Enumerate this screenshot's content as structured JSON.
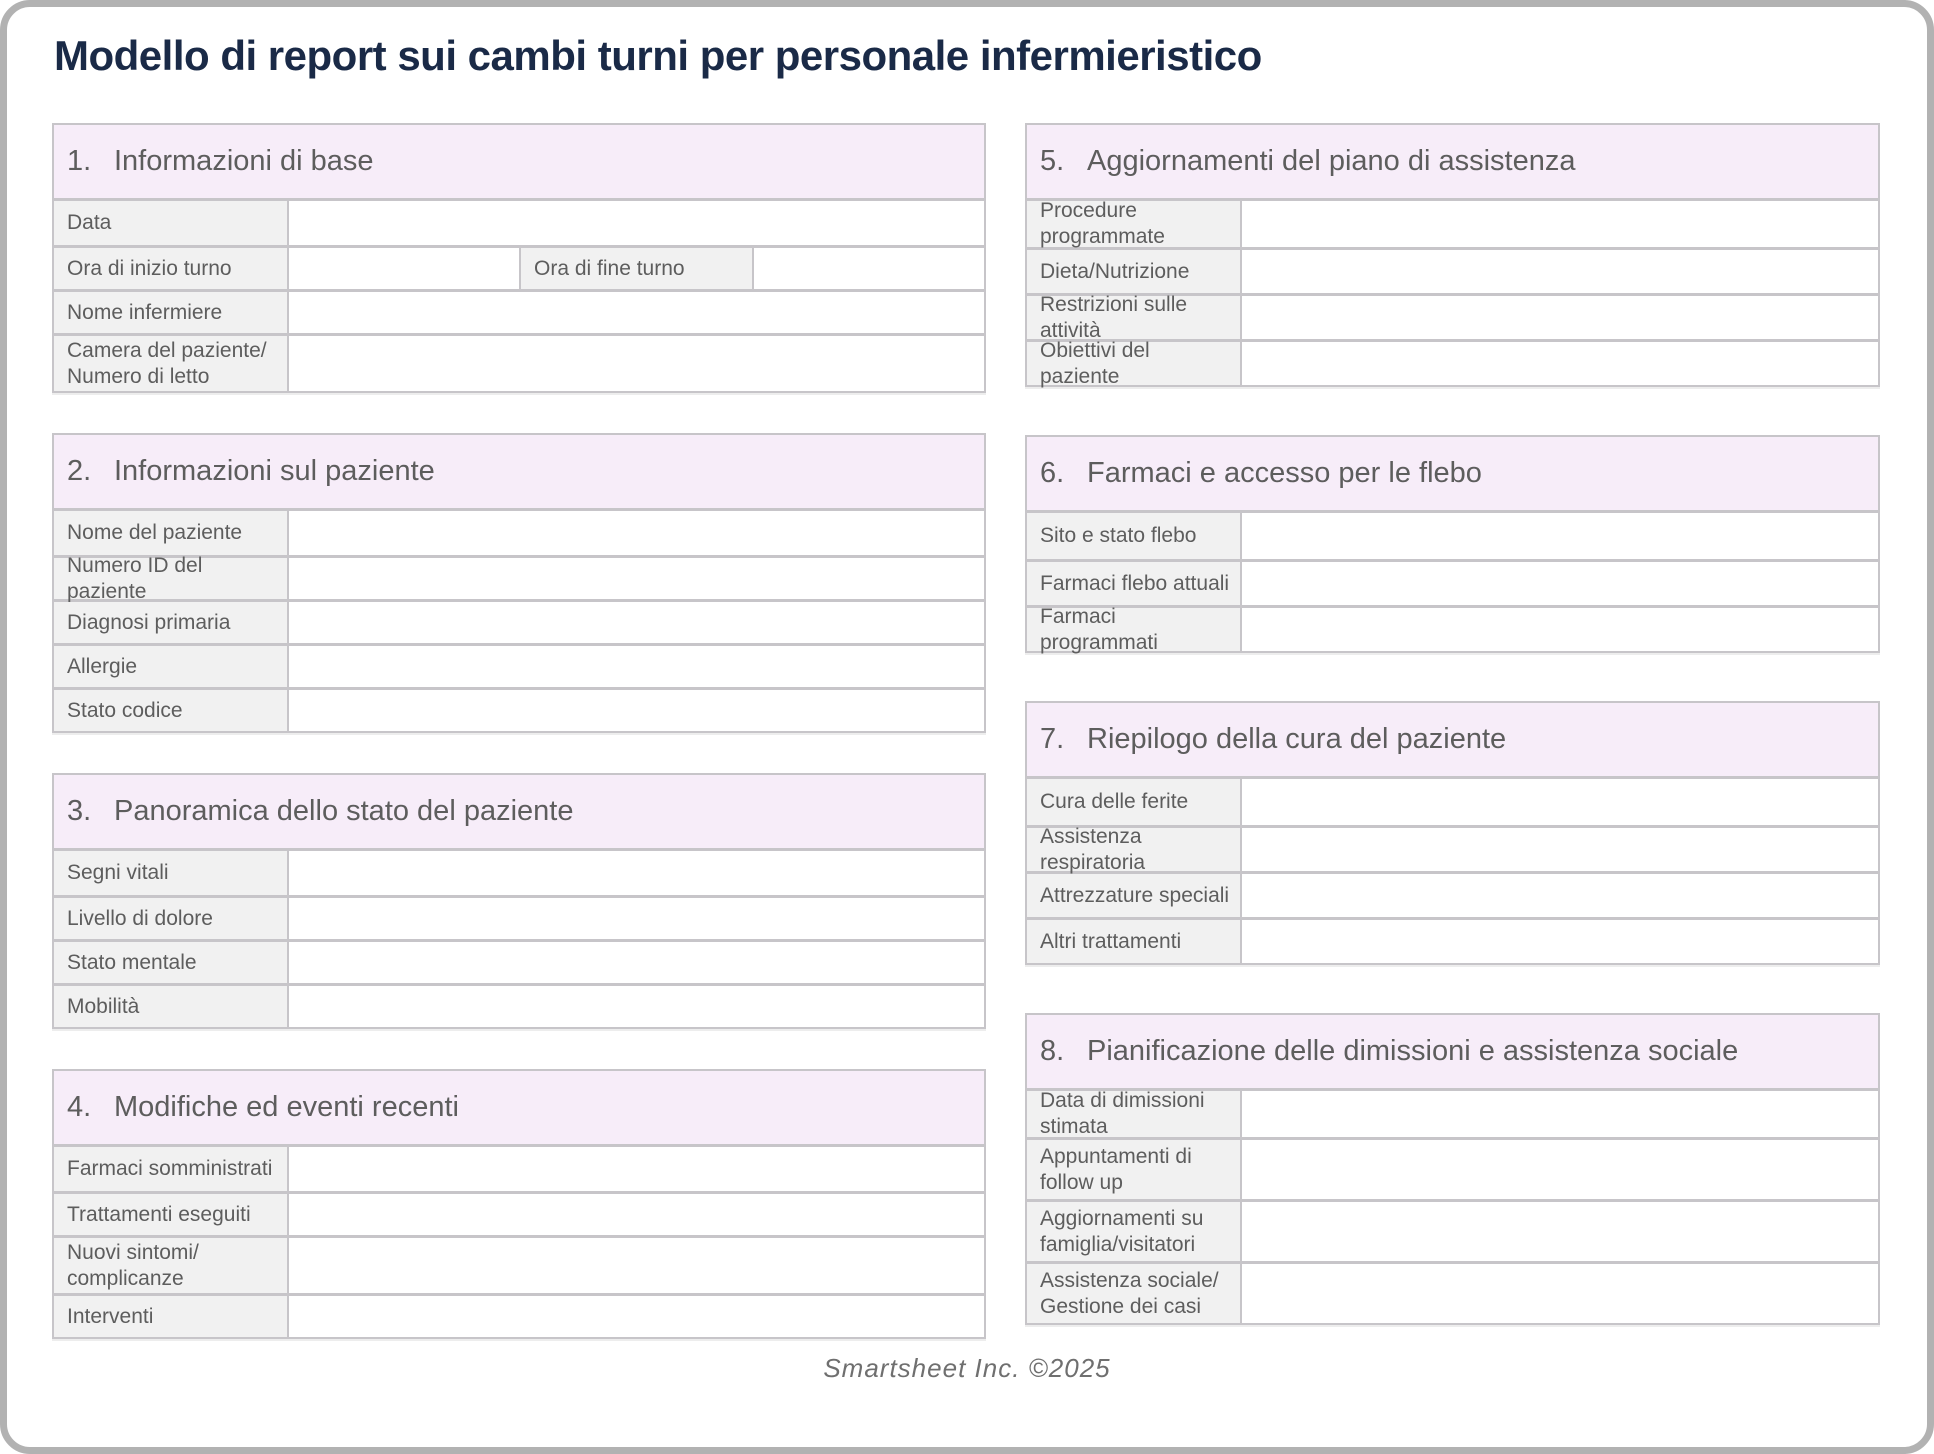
{
  "page": {
    "title": "Modello di report sui cambi turni per personale infermieristico",
    "footer": "Smartsheet Inc. ©2025"
  },
  "colors": {
    "title_text": "#1a2a47",
    "section_header_bg": "#f7edf9",
    "label_bg": "#f1f1f1",
    "border": "#c7c5c9",
    "text": "#5d5d5d",
    "footer_text": "#6f6f6f",
    "page_border": "#b2b2b2"
  },
  "sections": [
    {
      "number": "1.",
      "title": "Informazioni di base",
      "column": "left",
      "rows": [
        {
          "cells": [
            {
              "type": "label",
              "lines": [
                "Data"
              ]
            },
            {
              "type": "input"
            }
          ]
        },
        {
          "cells": [
            {
              "type": "label",
              "lines": [
                "Ora di inizio turno"
              ]
            },
            {
              "type": "input"
            },
            {
              "type": "label",
              "lines": [
                "Ora di fine turno"
              ]
            },
            {
              "type": "input"
            }
          ]
        },
        {
          "cells": [
            {
              "type": "label",
              "lines": [
                "Nome infermiere"
              ]
            },
            {
              "type": "input"
            }
          ]
        },
        {
          "tall": true,
          "cells": [
            {
              "type": "label",
              "lines": [
                "Camera del paziente/",
                "Numero di letto"
              ]
            },
            {
              "type": "input"
            }
          ]
        }
      ]
    },
    {
      "number": "2.",
      "title": "Informazioni sul paziente",
      "column": "left",
      "rows": [
        {
          "cells": [
            {
              "type": "label",
              "lines": [
                "Nome del paziente"
              ]
            },
            {
              "type": "input"
            }
          ]
        },
        {
          "cells": [
            {
              "type": "label",
              "lines": [
                "Numero ID del paziente"
              ]
            },
            {
              "type": "input"
            }
          ]
        },
        {
          "cells": [
            {
              "type": "label",
              "lines": [
                "Diagnosi primaria"
              ]
            },
            {
              "type": "input"
            }
          ]
        },
        {
          "cells": [
            {
              "type": "label",
              "lines": [
                "Allergie"
              ]
            },
            {
              "type": "input"
            }
          ]
        },
        {
          "cells": [
            {
              "type": "label",
              "lines": [
                "Stato codice"
              ]
            },
            {
              "type": "input"
            }
          ]
        }
      ]
    },
    {
      "number": "3.",
      "title": "Panoramica dello stato del paziente",
      "column": "left",
      "rows": [
        {
          "cells": [
            {
              "type": "label",
              "lines": [
                "Segni vitali"
              ]
            },
            {
              "type": "input"
            }
          ]
        },
        {
          "cells": [
            {
              "type": "label",
              "lines": [
                "Livello di dolore"
              ]
            },
            {
              "type": "input"
            }
          ]
        },
        {
          "cells": [
            {
              "type": "label",
              "lines": [
                "Stato mentale"
              ]
            },
            {
              "type": "input"
            }
          ]
        },
        {
          "cells": [
            {
              "type": "label",
              "lines": [
                "Mobilità"
              ]
            },
            {
              "type": "input"
            }
          ]
        }
      ]
    },
    {
      "number": "4.",
      "title": "Modifiche ed eventi recenti",
      "column": "left",
      "rows": [
        {
          "cells": [
            {
              "type": "label",
              "lines": [
                "Farmaci somministrati"
              ]
            },
            {
              "type": "input"
            }
          ]
        },
        {
          "cells": [
            {
              "type": "label",
              "lines": [
                "Trattamenti eseguiti"
              ]
            },
            {
              "type": "input"
            }
          ]
        },
        {
          "tall": true,
          "cells": [
            {
              "type": "label",
              "lines": [
                "Nuovi sintomi/",
                "complicanze"
              ]
            },
            {
              "type": "input"
            }
          ]
        },
        {
          "cells": [
            {
              "type": "label",
              "lines": [
                "Interventi"
              ]
            },
            {
              "type": "input"
            }
          ]
        }
      ]
    },
    {
      "number": "5.",
      "title": "Aggiornamenti del piano di assistenza",
      "column": "right",
      "rows": [
        {
          "cells": [
            {
              "type": "label",
              "lines": [
                "Procedure programmate"
              ]
            },
            {
              "type": "input"
            }
          ]
        },
        {
          "cells": [
            {
              "type": "label",
              "lines": [
                "Dieta/Nutrizione"
              ]
            },
            {
              "type": "input"
            }
          ]
        },
        {
          "cells": [
            {
              "type": "label",
              "lines": [
                "Restrizioni sulle attività"
              ]
            },
            {
              "type": "input"
            }
          ]
        },
        {
          "cells": [
            {
              "type": "label",
              "lines": [
                "Obiettivi del paziente"
              ]
            },
            {
              "type": "input"
            }
          ]
        }
      ]
    },
    {
      "number": "6.",
      "title": "Farmaci e accesso per le flebo",
      "column": "right",
      "rows": [
        {
          "cells": [
            {
              "type": "label",
              "lines": [
                "Sito e stato flebo"
              ]
            },
            {
              "type": "input"
            }
          ]
        },
        {
          "cells": [
            {
              "type": "label",
              "lines": [
                "Farmaci flebo attuali"
              ]
            },
            {
              "type": "input"
            }
          ]
        },
        {
          "cells": [
            {
              "type": "label",
              "lines": [
                "Farmaci programmati"
              ]
            },
            {
              "type": "input"
            }
          ]
        }
      ]
    },
    {
      "number": "7.",
      "title": "Riepilogo della cura del paziente",
      "column": "right",
      "rows": [
        {
          "cells": [
            {
              "type": "label",
              "lines": [
                "Cura delle ferite"
              ]
            },
            {
              "type": "input"
            }
          ]
        },
        {
          "cells": [
            {
              "type": "label",
              "lines": [
                "Assistenza respiratoria"
              ]
            },
            {
              "type": "input"
            }
          ]
        },
        {
          "cells": [
            {
              "type": "label",
              "lines": [
                "Attrezzature speciali"
              ]
            },
            {
              "type": "input"
            }
          ]
        },
        {
          "cells": [
            {
              "type": "label",
              "lines": [
                "Altri trattamenti"
              ]
            },
            {
              "type": "input"
            }
          ]
        }
      ]
    },
    {
      "number": "8.",
      "title": "Pianificazione delle dimissioni e assistenza sociale",
      "column": "right",
      "rows": [
        {
          "cells": [
            {
              "type": "label",
              "lines": [
                "Data di dimissioni stimata"
              ]
            },
            {
              "type": "input"
            }
          ]
        },
        {
          "tall": true,
          "cells": [
            {
              "type": "label",
              "lines": [
                "Appuntamenti di",
                "follow up"
              ]
            },
            {
              "type": "input"
            }
          ]
        },
        {
          "tall": true,
          "cells": [
            {
              "type": "label",
              "lines": [
                "Aggiornamenti su",
                "famiglia/visitatori"
              ]
            },
            {
              "type": "input"
            }
          ]
        },
        {
          "tall": true,
          "cells": [
            {
              "type": "label",
              "lines": [
                "Assistenza sociale/",
                "Gestione dei casi"
              ]
            },
            {
              "type": "input"
            }
          ]
        }
      ]
    }
  ]
}
